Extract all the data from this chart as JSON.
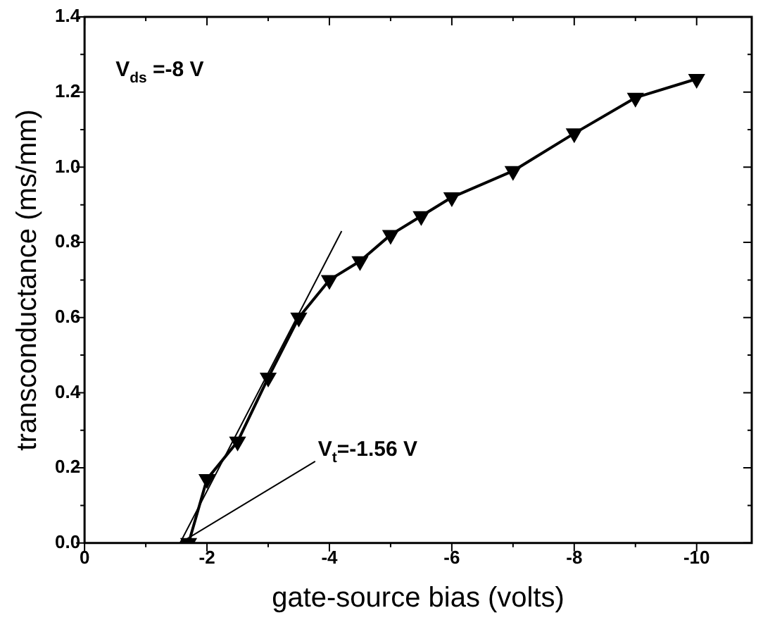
{
  "chart_data": {
    "type": "line",
    "xlabel": "gate-source bias (volts)",
    "ylabel": "transconductance (ms/mm)",
    "x": [
      -1.7,
      -2,
      -2.5,
      -3,
      -3.5,
      -4,
      -4.5,
      -5,
      -5.5,
      -6,
      -7,
      -8,
      -9,
      -10
    ],
    "series": [
      {
        "color": "#000000",
        "marker": "triangle",
        "values": [
          0,
          0.17,
          0.27,
          0.44,
          0.6,
          0.7,
          0.75,
          0.82,
          0.87,
          0.92,
          0.99,
          1.09,
          1.185,
          1.235
        ]
      },
      {
        "type": "line",
        "color": "#000000",
        "marker": "none",
        "x": [
          -1.56,
          -4.2
        ],
        "values": [
          0,
          0.83
        ]
      }
    ],
    "xlim": [
      0,
      -10.9
    ],
    "xticks": [
      0,
      {
        "value": -1,
        "label": null
      },
      -2,
      {
        "value": -3,
        "label": null
      },
      -4,
      {
        "value": -5,
        "label": null
      },
      -6,
      {
        "value": -7,
        "label": null
      },
      -8,
      {
        "value": -9,
        "label": null
      },
      -10
    ],
    "ylim": [
      0,
      1.4
    ],
    "yticks": [
      {
        "value": 0,
        "label": "0.0"
      },
      {
        "value": 0.1,
        "label": null
      },
      {
        "value": 0.2,
        "label": "0.2"
      },
      {
        "value": 0.3,
        "label": null
      },
      {
        "value": 0.4,
        "label": "0.4"
      },
      {
        "value": 0.5,
        "label": null
      },
      {
        "value": 0.6,
        "label": "0.6"
      },
      {
        "value": 0.7,
        "label": null
      },
      {
        "value": 0.8,
        "label": "0.8"
      },
      {
        "value": 0.9,
        "label": null
      },
      {
        "value": 1.0,
        "label": "1.0"
      },
      {
        "value": 1.1,
        "label": null
      },
      {
        "value": 1.2,
        "label": "1.2"
      },
      {
        "value": 1.3,
        "label": null
      },
      {
        "value": 1.4,
        "label": "1.4"
      }
    ],
    "annotations": [
      "V$_{ds}$ =-8 V",
      {
        "text": "V$_{t}$=-1.56 V",
        "x": -1.56,
        "y": 0
      }
    ],
    "grid": false,
    "legend": false,
    "line_style": "solid"
  }
}
